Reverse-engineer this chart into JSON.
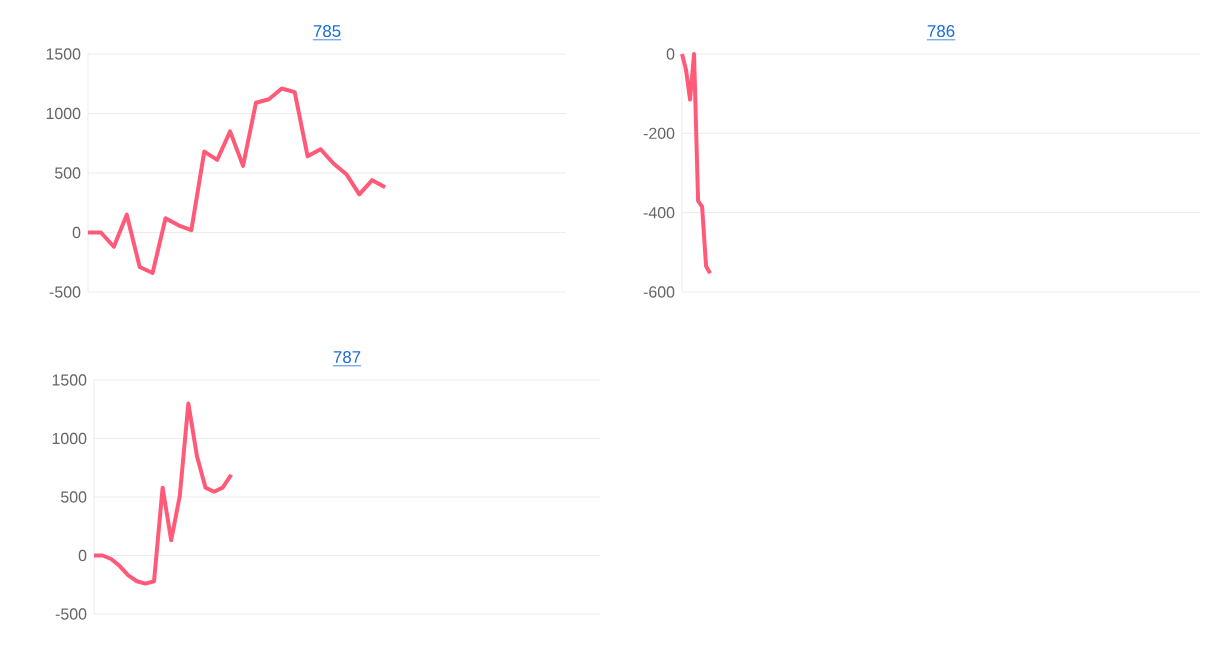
{
  "chart_data": [
    {
      "type": "line",
      "title": "785",
      "color": "#ff5a78",
      "marker": "none",
      "grid": "y",
      "tick_labels": "y",
      "ylim": [
        -500,
        1500
      ],
      "yticks": [
        -500,
        0,
        500,
        1000,
        1500
      ],
      "categories": [
        null,
        null,
        null,
        null,
        null,
        null,
        null,
        null,
        null,
        null,
        null,
        null,
        null,
        null,
        null,
        null,
        null,
        null,
        null,
        null,
        null,
        null,
        null,
        null,
        null,
        null,
        null,
        null,
        null,
        null,
        null,
        null,
        null,
        null,
        null,
        null,
        null,
        null
      ],
      "values": [
        0,
        0,
        -120,
        150,
        -290,
        -340,
        120,
        60,
        20,
        680,
        610,
        850,
        560,
        1090,
        1120,
        1210,
        1180,
        640,
        700,
        580,
        490,
        320,
        440,
        380,
        null,
        null,
        null,
        null,
        null,
        null,
        null,
        null,
        null,
        null,
        null,
        null,
        null,
        null
      ]
    },
    {
      "type": "line",
      "title": "786",
      "color": "#ff5a78",
      "marker": "none",
      "grid": "y",
      "tick_labels": "y",
      "ylim": [
        -600,
        0
      ],
      "yticks": [
        -600,
        -400,
        -200,
        0
      ],
      "categories": [
        null,
        null,
        null,
        null,
        null,
        null,
        null,
        null,
        null,
        null,
        null,
        null,
        null,
        null,
        null,
        null,
        null,
        null,
        null,
        null,
        null,
        null,
        null,
        null,
        null,
        null,
        null,
        null,
        null,
        null,
        null,
        null,
        null,
        null,
        null,
        null,
        null,
        null,
        null,
        null,
        null,
        null,
        null,
        null,
        null,
        null,
        null,
        null,
        null,
        null,
        null,
        null,
        null,
        null,
        null,
        null,
        null,
        null,
        null,
        null,
        null,
        null,
        null,
        null,
        null,
        null,
        null,
        null,
        null,
        null,
        null,
        null,
        null,
        null,
        null,
        null,
        null,
        null,
        null,
        null,
        null,
        null,
        null,
        null,
        null,
        null,
        null,
        null,
        null,
        null,
        null,
        null,
        null,
        null,
        null,
        null,
        null,
        null,
        null,
        null,
        null,
        null,
        null,
        null,
        null,
        null,
        null,
        null,
        null,
        null,
        null,
        null,
        null,
        null,
        null,
        null,
        null,
        null,
        null,
        null,
        null,
        null,
        null,
        null,
        null,
        null,
        null,
        null,
        null,
        null
      ],
      "values": [
        0,
        -40,
        -115,
        0,
        -370,
        -385,
        -535,
        -553,
        null,
        null,
        null,
        null,
        null,
        null,
        null,
        null,
        null,
        null,
        null,
        null,
        null,
        null,
        null,
        null,
        null,
        null,
        null,
        null,
        null,
        null,
        null,
        null,
        null,
        null,
        null,
        null,
        null,
        null,
        null,
        null,
        null,
        null,
        null,
        null,
        null,
        null,
        null,
        null,
        null,
        null,
        null,
        null,
        null,
        null,
        null,
        null,
        null,
        null,
        null,
        null,
        null,
        null,
        null,
        null,
        null,
        null,
        null,
        null,
        null,
        null,
        null,
        null,
        null,
        null,
        null,
        null,
        null,
        null,
        null,
        null,
        null,
        null,
        null,
        null,
        null,
        null,
        null,
        null,
        null,
        null,
        null,
        null,
        null,
        null,
        null,
        null,
        null,
        null,
        null,
        null,
        null,
        null,
        null,
        null,
        null,
        null,
        null,
        null,
        null,
        null,
        null,
        null,
        null,
        null,
        null,
        null,
        null,
        null,
        null,
        null,
        null,
        null,
        null,
        null,
        null,
        null,
        null,
        null,
        null,
        null
      ]
    },
    {
      "type": "line",
      "title": "787",
      "color": "#ff5a78",
      "marker": "none",
      "grid": "y",
      "tick_labels": "y",
      "ylim": [
        -500,
        1500
      ],
      "yticks": [
        -500,
        0,
        500,
        1000,
        1500
      ],
      "categories": [
        null,
        null,
        null,
        null,
        null,
        null,
        null,
        null,
        null,
        null,
        null,
        null,
        null,
        null,
        null,
        null,
        null,
        null,
        null,
        null,
        null,
        null,
        null,
        null,
        null,
        null,
        null,
        null,
        null,
        null,
        null,
        null,
        null,
        null,
        null,
        null,
        null,
        null,
        null,
        null,
        null,
        null,
        null,
        null,
        null,
        null,
        null,
        null,
        null,
        null,
        null,
        null,
        null,
        null,
        null,
        null,
        null,
        null,
        null,
        null
      ],
      "values": [
        0,
        0,
        -30,
        -90,
        -170,
        -220,
        -240,
        -220,
        580,
        130,
        510,
        1300,
        850,
        580,
        545,
        580,
        690,
        null,
        null,
        null,
        null,
        null,
        null,
        null,
        null,
        null,
        null,
        null,
        null,
        null,
        null,
        null,
        null,
        null,
        null,
        null,
        null,
        null,
        null,
        null,
        null,
        null,
        null,
        null,
        null,
        null,
        null,
        null,
        null,
        null,
        null,
        null,
        null,
        null,
        null,
        null,
        null,
        null,
        null,
        null
      ]
    }
  ]
}
